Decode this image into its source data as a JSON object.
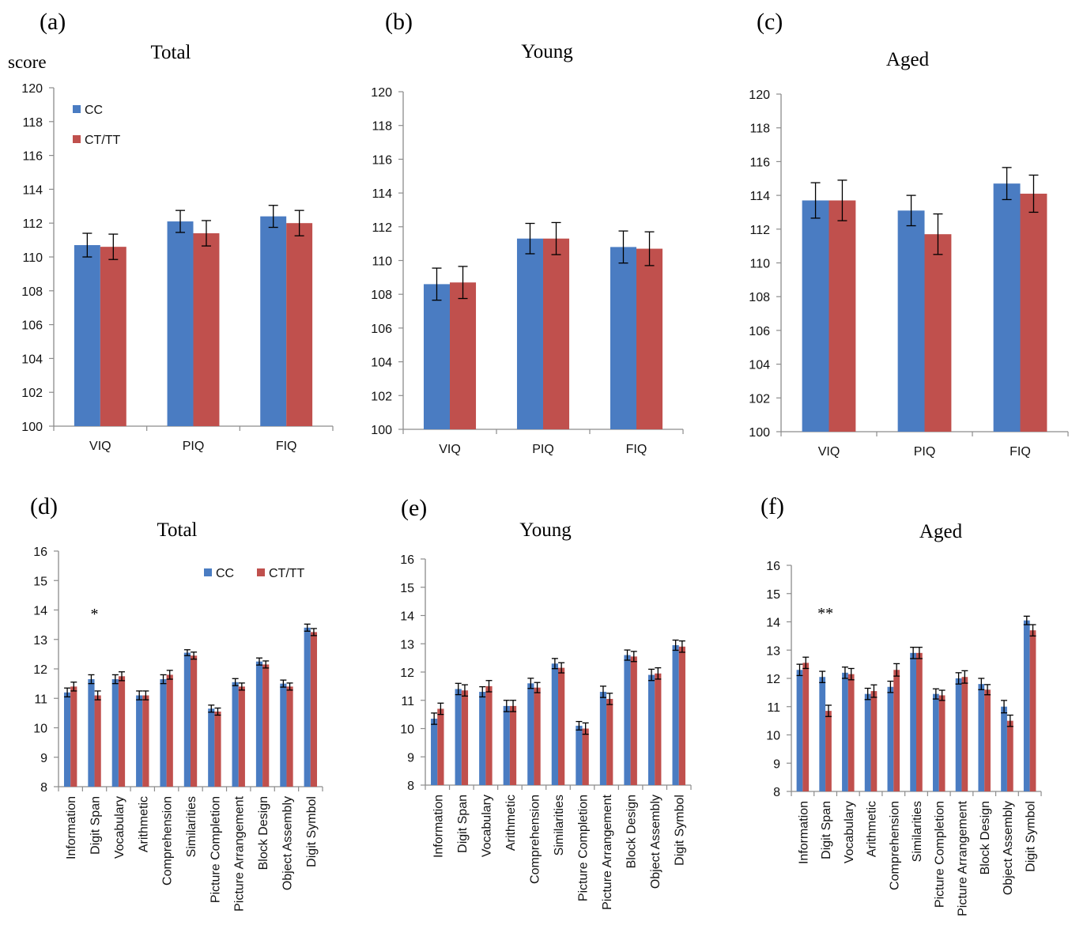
{
  "colors": {
    "cc": "#4a7cc2",
    "ct": "#c0504d",
    "axis": "#8c8c8c",
    "errorbar": "#000000"
  },
  "chart_data": [
    {
      "panel": "(a)",
      "title": "Total",
      "ylabel": "score",
      "type": "bar",
      "categories": [
        "VIQ",
        "PIQ",
        "FIQ"
      ],
      "ylim": [
        100,
        120
      ],
      "yticks": [
        100,
        102,
        104,
        106,
        108,
        110,
        112,
        114,
        116,
        118,
        120
      ],
      "legend": "top-left",
      "series": [
        {
          "name": "CC",
          "values": [
            110.7,
            112.1,
            112.4
          ],
          "errors": [
            0.7,
            0.65,
            0.65
          ]
        },
        {
          "name": "CT/TT",
          "values": [
            110.6,
            111.4,
            112.0
          ],
          "errors": [
            0.75,
            0.75,
            0.75
          ]
        }
      ]
    },
    {
      "panel": "(b)",
      "title": "Young",
      "type": "bar",
      "categories": [
        "VIQ",
        "PIQ",
        "FIQ"
      ],
      "ylim": [
        100,
        120
      ],
      "yticks": [
        100,
        102,
        104,
        106,
        108,
        110,
        112,
        114,
        116,
        118,
        120
      ],
      "series": [
        {
          "name": "CC",
          "values": [
            108.6,
            111.3,
            110.8
          ],
          "errors": [
            0.95,
            0.9,
            0.95
          ]
        },
        {
          "name": "CT/TT",
          "values": [
            108.7,
            111.3,
            110.7
          ],
          "errors": [
            0.95,
            0.95,
            1.0
          ]
        }
      ]
    },
    {
      "panel": "(c)",
      "title": "Aged",
      "type": "bar",
      "categories": [
        "VIQ",
        "PIQ",
        "FIQ"
      ],
      "ylim": [
        100,
        120
      ],
      "yticks": [
        100,
        102,
        104,
        106,
        108,
        110,
        112,
        114,
        116,
        118,
        120
      ],
      "series": [
        {
          "name": "CC",
          "values": [
            113.7,
            113.1,
            114.7
          ],
          "errors": [
            1.05,
            0.9,
            0.95
          ]
        },
        {
          "name": "CT/TT",
          "values": [
            113.7,
            111.7,
            114.1
          ],
          "errors": [
            1.2,
            1.2,
            1.1
          ]
        }
      ]
    },
    {
      "panel": "(d)",
      "title": "Total",
      "type": "bar",
      "categories": [
        "Information",
        "Digit Span",
        "Vocabulary",
        "Arithmetic",
        "Comprehension",
        "Similarities",
        "Picture Completion",
        "Picture Arrangement",
        "Block Design",
        "Object Assembly",
        "Digit Symbol"
      ],
      "ylim": [
        8,
        16
      ],
      "yticks": [
        8,
        9,
        10,
        11,
        12,
        13,
        14,
        15,
        16
      ],
      "legend": "top-right",
      "annotations": [
        {
          "category": "Digit Span",
          "text": "*"
        }
      ],
      "series": [
        {
          "name": "CC",
          "values": [
            11.2,
            11.65,
            11.65,
            11.1,
            11.65,
            12.55,
            10.65,
            11.55,
            12.25,
            11.5,
            13.4
          ],
          "errors": [
            0.15,
            0.15,
            0.15,
            0.15,
            0.15,
            0.1,
            0.12,
            0.12,
            0.12,
            0.12,
            0.12
          ]
        },
        {
          "name": "CT/TT",
          "values": [
            11.4,
            11.1,
            11.75,
            11.1,
            11.8,
            12.45,
            10.55,
            11.4,
            12.15,
            11.4,
            13.25
          ],
          "errors": [
            0.15,
            0.15,
            0.15,
            0.15,
            0.15,
            0.12,
            0.12,
            0.12,
            0.12,
            0.12,
            0.12
          ]
        }
      ]
    },
    {
      "panel": "(e)",
      "title": "Young",
      "type": "bar",
      "categories": [
        "Information",
        "Digit Span",
        "Vocabulary",
        "Arithmetic",
        "Comprehension",
        "Similarities",
        "Picture Completion",
        "Picture Arrangement",
        "Block Design",
        "Object Assembly",
        "Digit Symbol"
      ],
      "ylim": [
        8,
        16
      ],
      "yticks": [
        8,
        9,
        10,
        11,
        12,
        13,
        14,
        15,
        16
      ],
      "series": [
        {
          "name": "CC",
          "values": [
            10.35,
            11.4,
            11.3,
            10.8,
            11.6,
            12.3,
            10.1,
            11.3,
            12.6,
            11.9,
            12.95
          ],
          "errors": [
            0.2,
            0.2,
            0.18,
            0.2,
            0.18,
            0.18,
            0.15,
            0.2,
            0.18,
            0.2,
            0.18
          ]
        },
        {
          "name": "CT/TT",
          "values": [
            10.7,
            11.35,
            11.5,
            10.8,
            11.45,
            12.15,
            10.0,
            11.05,
            12.55,
            11.95,
            12.9
          ],
          "errors": [
            0.2,
            0.2,
            0.2,
            0.2,
            0.18,
            0.18,
            0.2,
            0.2,
            0.18,
            0.2,
            0.2
          ]
        }
      ]
    },
    {
      "panel": "(f)",
      "title": "Aged",
      "type": "bar",
      "categories": [
        "Information",
        "Digit Span",
        "Vocabulary",
        "Arithmetic",
        "Comprehension",
        "Similarities",
        "Picture Completion",
        "Picture Arrangement",
        "Block Design",
        "Object Assembly",
        "Digit Symbol"
      ],
      "ylim": [
        8,
        16
      ],
      "yticks": [
        8,
        9,
        10,
        11,
        12,
        13,
        14,
        15,
        16
      ],
      "annotations": [
        {
          "category": "Digit Span",
          "text": "**"
        }
      ],
      "series": [
        {
          "name": "CC",
          "values": [
            12.3,
            12.05,
            12.2,
            11.45,
            11.7,
            12.9,
            11.45,
            12.0,
            11.8,
            11.0,
            14.05
          ],
          "errors": [
            0.2,
            0.2,
            0.2,
            0.2,
            0.2,
            0.2,
            0.18,
            0.2,
            0.2,
            0.22,
            0.15
          ]
        },
        {
          "name": "CT/TT",
          "values": [
            12.55,
            10.85,
            12.15,
            11.55,
            12.3,
            12.9,
            11.4,
            12.05,
            11.6,
            10.5,
            13.7
          ],
          "errors": [
            0.2,
            0.2,
            0.2,
            0.22,
            0.22,
            0.2,
            0.18,
            0.22,
            0.18,
            0.2,
            0.2
          ]
        }
      ]
    }
  ]
}
